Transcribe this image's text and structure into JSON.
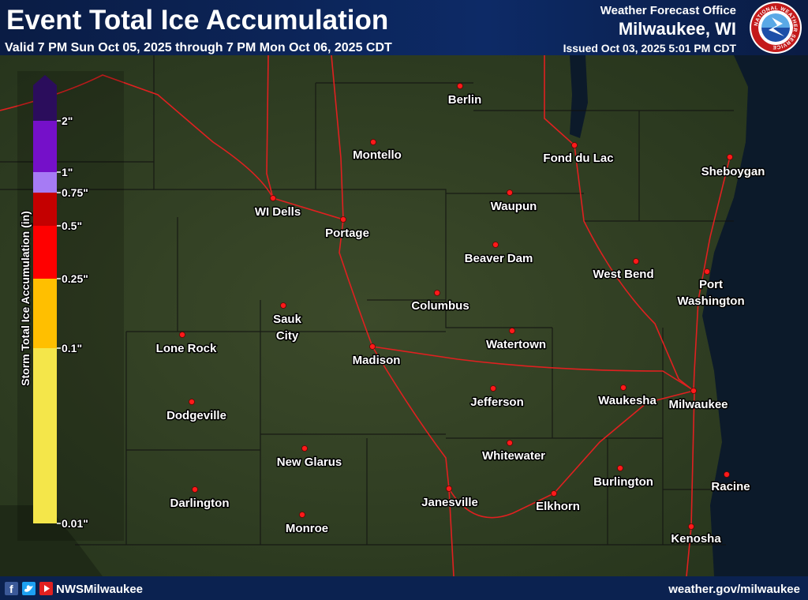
{
  "header": {
    "title": "Event Total Ice Accumulation",
    "valid": "Valid 7 PM Sun Oct 05, 2025 through 7 PM Mon Oct 06, 2025 CDT",
    "office_line": "Weather Forecast Office",
    "office": "Milwaukee, WI",
    "issued": "Issued Oct 03, 2025 5:01 PM CDT",
    "logo_text": "NATIONAL WEATHER SERVICE"
  },
  "legend": {
    "title": "Storm Total Ice Accumulation (in)",
    "levels": [
      {
        "label": "2\"",
        "color": "#7510c9"
      },
      {
        "label": "1\"",
        "color": "#a67bf4"
      },
      {
        "label": "0.75\"",
        "color": "#c40000"
      },
      {
        "label": "0.5\"",
        "color": "#ff0000"
      },
      {
        "label": "0.25\"",
        "color": "#ffbf00"
      },
      {
        "label": "0.1\"",
        "color": "#f4e64a"
      },
      {
        "label": "0.01\""
      }
    ],
    "top_color": "#2b0d5c"
  },
  "cities": [
    "Berlin",
    "Montello",
    "Fond du Lac",
    "Sheboygan",
    "WI Dells",
    "Portage",
    "Waupun",
    "Beaver Dam",
    "West Bend",
    "Port Washington",
    "Columbus",
    "Sauk City",
    "Lone Rock",
    "Madison",
    "Watertown",
    "Jefferson",
    "Waukesha",
    "Milwaukee",
    "Dodgeville",
    "Whitewater",
    "New Glarus",
    "Burlington",
    "Racine",
    "Darlington",
    "Janesville",
    "Elkhorn",
    "Monroe",
    "Kenosha"
  ],
  "footer": {
    "social": "NWSMilwaukee",
    "url": "weather.gov/milwaukee"
  }
}
